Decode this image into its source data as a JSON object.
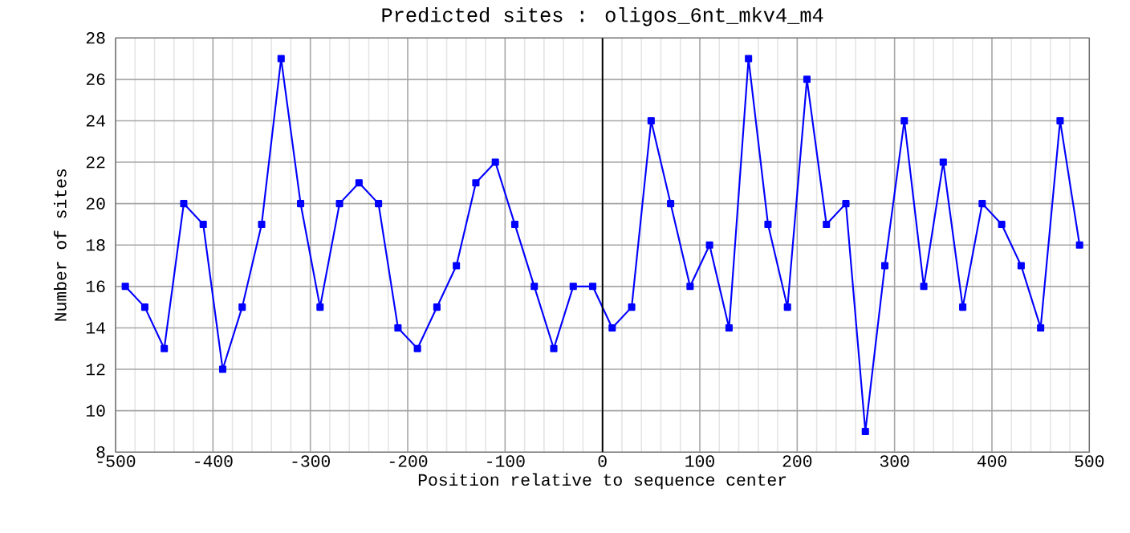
{
  "chart_data": {
    "type": "line",
    "title": "Predicted sites : oligos_6nt_mkv4_m4",
    "xlabel": "Position relative to sequence center",
    "ylabel": "Number of sites",
    "x": [
      -490,
      -470,
      -450,
      -430,
      -410,
      -390,
      -370,
      -350,
      -330,
      -310,
      -290,
      -270,
      -250,
      -230,
      -210,
      -190,
      -170,
      -150,
      -130,
      -110,
      -90,
      -70,
      -50,
      -30,
      -10,
      10,
      30,
      50,
      70,
      90,
      110,
      130,
      150,
      170,
      190,
      210,
      230,
      250,
      270,
      290,
      310,
      330,
      350,
      370,
      390,
      410,
      430,
      450,
      470,
      490
    ],
    "series": [
      {
        "color": "#0000ff",
        "values": [
          16,
          15,
          13,
          20,
          19,
          12,
          15,
          19,
          27,
          20,
          15,
          20,
          21,
          20,
          14,
          13,
          15,
          17,
          21,
          22,
          19,
          16,
          13,
          16,
          16,
          14,
          15,
          24,
          20,
          16,
          18,
          14,
          27,
          19,
          15,
          26,
          19,
          20,
          9,
          17,
          24,
          16,
          22,
          15,
          20,
          19,
          17,
          14,
          24,
          18
        ]
      }
    ],
    "xlim": [
      -500,
      500
    ],
    "xticks": [
      -500,
      -400,
      -300,
      -200,
      -100,
      0,
      100,
      200,
      300,
      400,
      500
    ],
    "ylim": [
      8,
      28
    ],
    "yticks": [
      8,
      10,
      12,
      14,
      16,
      18,
      20,
      22,
      24,
      26,
      28
    ],
    "ref_lines": [
      {
        "axis": "x",
        "value": 0,
        "color": "#000000"
      }
    ],
    "grid": true,
    "marker": "square",
    "line_style": "solid"
  }
}
